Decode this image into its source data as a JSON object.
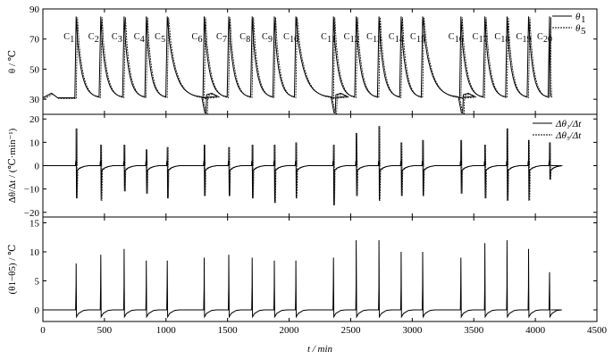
{
  "chart_data": [
    {
      "type": "line",
      "ylabel": "θ / ℃",
      "ylim": [
        20,
        90
      ],
      "yticks": [
        30,
        50,
        70,
        90
      ],
      "xlim": [
        0,
        4500
      ],
      "legend": {
        "placement": "top-right",
        "entries": [
          "θ1",
          "θ5"
        ]
      },
      "series": [
        {
          "name": "θ1",
          "style": "solid"
        },
        {
          "name": "θ5",
          "style": "dashed"
        }
      ],
      "cycles": {
        "labels": [
          "C1",
          "C2",
          "C3",
          "C4",
          "C5",
          "C6",
          "C7",
          "C8",
          "C9",
          "C10",
          "C11",
          "C12",
          "C13",
          "C14",
          "C15",
          "C16",
          "C17",
          "C18",
          "C19",
          "C20"
        ],
        "spike_times": [
          270,
          470,
          660,
          840,
          1010,
          1310,
          1510,
          1700,
          1880,
          2055,
          2360,
          2545,
          2730,
          2910,
          3085,
          3395,
          3590,
          3770,
          3945,
          4115
        ],
        "baseline": 30,
        "peak": 85
      }
    },
    {
      "type": "line",
      "ylabel": "Δθ/Δt / (℃·min⁻¹)",
      "ylim": [
        -22,
        22
      ],
      "yticks": [
        -20,
        -10,
        0,
        10,
        20
      ],
      "xlim": [
        0,
        4500
      ],
      "legend": {
        "placement": "top-right",
        "entries": [
          "Δθ1/Δt",
          "Δθ5/Δt"
        ]
      },
      "series": [
        {
          "name": "Δθ1/Δt",
          "style": "solid"
        },
        {
          "name": "Δθ5/Δt",
          "style": "dashed"
        }
      ],
      "spike_times": [
        270,
        470,
        660,
        840,
        1010,
        1310,
        1510,
        1700,
        1880,
        2055,
        2360,
        2545,
        2730,
        2910,
        3085,
        3395,
        3590,
        3770,
        3945,
        4115
      ],
      "positive_peaks": [
        16,
        9,
        9,
        7,
        8,
        9,
        8,
        9,
        9,
        10,
        9,
        14,
        17,
        10,
        11,
        11,
        9,
        16,
        11,
        10
      ],
      "negative_peaks": [
        -14,
        -15,
        -11,
        -12,
        -14,
        -13,
        -13,
        -14,
        -16,
        -14,
        -17,
        -13,
        -15,
        -13,
        -13,
        -12,
        -14,
        -15,
        -15,
        -6
      ]
    },
    {
      "type": "line",
      "ylabel": "(θ1−θ5) / ℃",
      "ylim": [
        -2,
        16
      ],
      "yticks": [
        0,
        5,
        10,
        15
      ],
      "xlim": [
        0,
        4500
      ],
      "xticks": [
        0,
        500,
        1000,
        1500,
        2000,
        2500,
        3000,
        3500,
        4000,
        4500
      ],
      "xlabel": "t / min",
      "spike_times": [
        270,
        470,
        660,
        840,
        1010,
        1310,
        1510,
        1700,
        1880,
        2055,
        2360,
        2545,
        2730,
        2910,
        3085,
        3395,
        3590,
        3770,
        3945,
        4115
      ],
      "peaks": [
        8,
        9.5,
        10.5,
        8.5,
        8.5,
        9,
        9.5,
        9,
        8.5,
        8.5,
        9,
        12,
        12,
        10,
        10,
        9,
        11.5,
        12,
        10.5,
        6.5
      ]
    }
  ]
}
